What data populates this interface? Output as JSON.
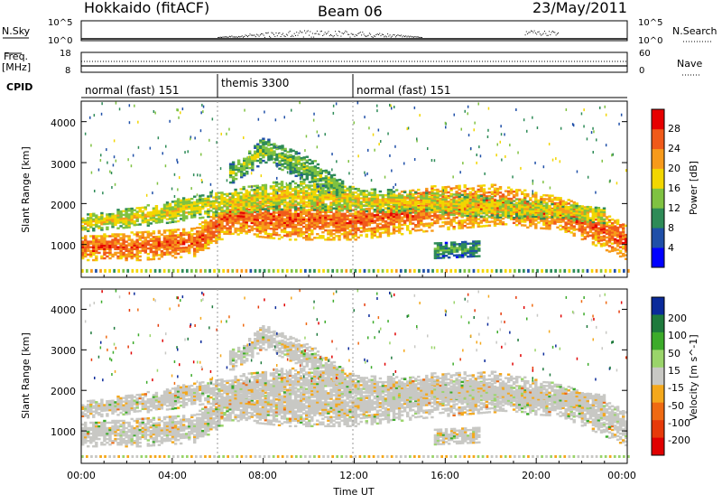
{
  "header": {
    "title": "Hokkaido (fitACF)",
    "beam": "Beam 06",
    "date": "23/May/2011"
  },
  "summary": {
    "nsky_label": "N.Sky",
    "nsky_ticks": [
      "10^5",
      "10^0"
    ],
    "nsearch_ticks": [
      "10^5",
      "10^0"
    ],
    "nsearch_label": "N.Search",
    "freq_label": "Freq.",
    "freq_unit": "[MHz]",
    "freq_ticks": [
      "18",
      "8"
    ],
    "nave_ticks": [
      "60",
      "0"
    ],
    "nave_label": "Nave",
    "cpid_label": "CPID",
    "cpid_segments": [
      {
        "label": "normal (fast) 151",
        "start_hour": 0,
        "end_hour": 6
      },
      {
        "label": "themis 3300",
        "start_hour": 6,
        "end_hour": 12
      },
      {
        "label": "normal (fast) 151",
        "start_hour": 12,
        "end_hour": 24
      }
    ]
  },
  "chart_data": [
    {
      "type": "heatmap",
      "name": "power",
      "ylabel": "Slant Range [km]",
      "y_ticks": [
        "1000",
        "2000",
        "3000",
        "4000"
      ],
      "xlim": [
        0,
        24
      ],
      "ylim": [
        200,
        4500
      ],
      "colorbar": {
        "label": "Power [dB]",
        "ticks": [
          "4",
          "8",
          "12",
          "16",
          "20",
          "24",
          "28"
        ],
        "colors": [
          "#0000ff",
          "#1f4fa8",
          "#2e8b57",
          "#7fc241",
          "#f2d600",
          "#f79a1b",
          "#f05a1a",
          "#e60000"
        ]
      },
      "echo_bands": [
        {
          "t": [
            0,
            2.5,
            5,
            6.5,
            9,
            12,
            15,
            18,
            21,
            24
          ],
          "r": [
            900,
            950,
            1050,
            1700,
            1600,
            1550,
            1850,
            1950,
            1750,
            1050
          ],
          "w": [
            300,
            350,
            350,
            450,
            500,
            450,
            550,
            500,
            400,
            450
          ],
          "p": 26
        },
        {
          "t": [
            0,
            3,
            6,
            9,
            12,
            15,
            18,
            21,
            23
          ],
          "r": [
            1500,
            1700,
            2000,
            2200,
            2100,
            2000,
            1900,
            1800,
            1700
          ],
          "w": [
            200,
            250,
            300,
            350,
            300,
            250,
            250,
            200,
            200
          ],
          "p": 19
        },
        {
          "t": [
            6.5,
            8,
            10,
            11.5
          ],
          "r": [
            2700,
            3300,
            2800,
            2300
          ],
          "w": [
            250,
            300,
            300,
            250
          ],
          "p": 15
        },
        {
          "t": [
            15.5,
            17.5
          ],
          "r": [
            850,
            900
          ],
          "w": [
            200,
            200
          ],
          "p": 12
        }
      ]
    },
    {
      "type": "heatmap",
      "name": "velocity",
      "ylabel": "Slant Range [km]",
      "y_ticks": [
        "1000",
        "2000",
        "3000",
        "4000"
      ],
      "xlim": [
        0,
        24
      ],
      "ylim": [
        200,
        4500
      ],
      "colorbar": {
        "label": "Velocity [m s^-1]",
        "ticks": [
          "200",
          "100",
          "50",
          "15",
          "-15",
          "-50",
          "-100",
          "-200"
        ],
        "colors": [
          "#0a2a9a",
          "#1e7a3c",
          "#3cab2a",
          "#9ad46a",
          "#c8c8c4",
          "#f4a81c",
          "#ef6a12",
          "#e63a0a",
          "#e00000"
        ]
      },
      "x_ticks": [
        "00:00",
        "04:00",
        "08:00",
        "12:00",
        "16:00",
        "20:00",
        "00:00"
      ],
      "xlabel": "Time UT"
    }
  ]
}
